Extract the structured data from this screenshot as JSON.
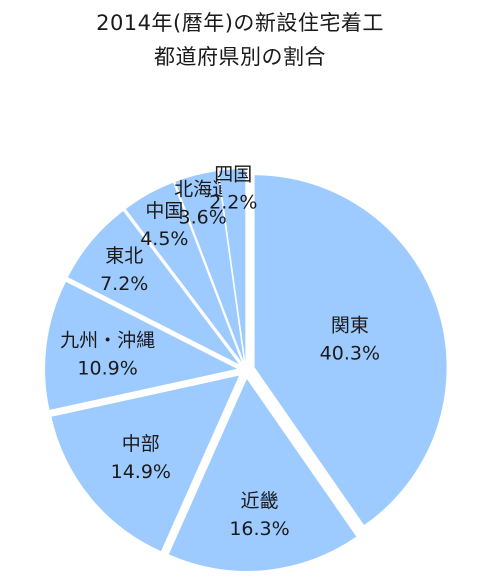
{
  "title_lines": [
    "2014年(暦年)の新設住宅着工",
    "都道府県別の割合"
  ],
  "chart_data": {
    "type": "pie",
    "title": "2014年(暦年)の新設住宅着工 都道府県別の割合",
    "start": "top",
    "direction": "clockwise",
    "exploded": true,
    "slice_color": "#9ecbff",
    "series": [
      {
        "category": "関東",
        "value": 40.3,
        "label": "40.3%"
      },
      {
        "category": "近畿",
        "value": 16.3,
        "label": "16.3%"
      },
      {
        "category": "中部",
        "value": 14.9,
        "label": "14.9%"
      },
      {
        "category": "九州・沖縄",
        "value": 10.9,
        "label": "10.9%"
      },
      {
        "category": "東北",
        "value": 7.2,
        "label": "7.2%"
      },
      {
        "category": "中国",
        "value": 4.5,
        "label": "4.5%"
      },
      {
        "category": "北海道",
        "value": 3.6,
        "label": "3.6%"
      },
      {
        "category": "四国",
        "value": 2.2,
        "label": "2.2%"
      }
    ]
  }
}
